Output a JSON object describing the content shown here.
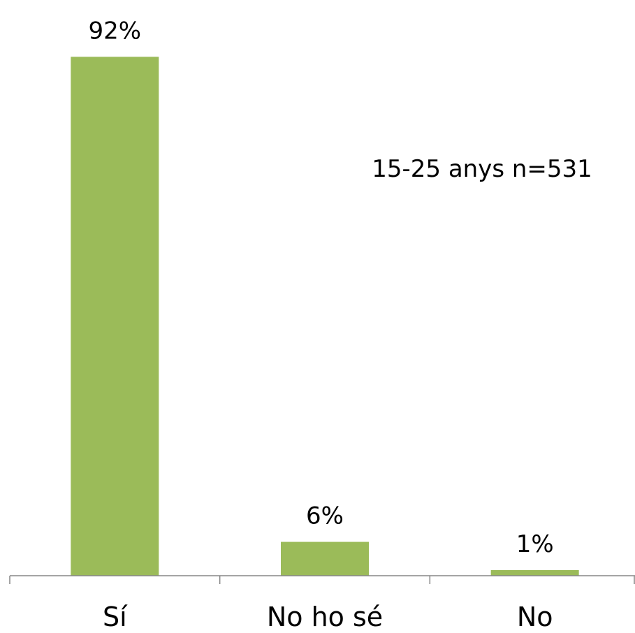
{
  "chart_data": {
    "type": "bar",
    "categories": [
      "Sí",
      "No ho sé",
      "No"
    ],
    "values": [
      92,
      6,
      1
    ],
    "value_labels": [
      "92%",
      "6%",
      "1%"
    ],
    "annotation": "15-25 anys n=531",
    "ylim": [
      0,
      100
    ],
    "grid": false,
    "legend": "none",
    "bar_color": "#9BBB59",
    "axis_color": "#868686"
  }
}
